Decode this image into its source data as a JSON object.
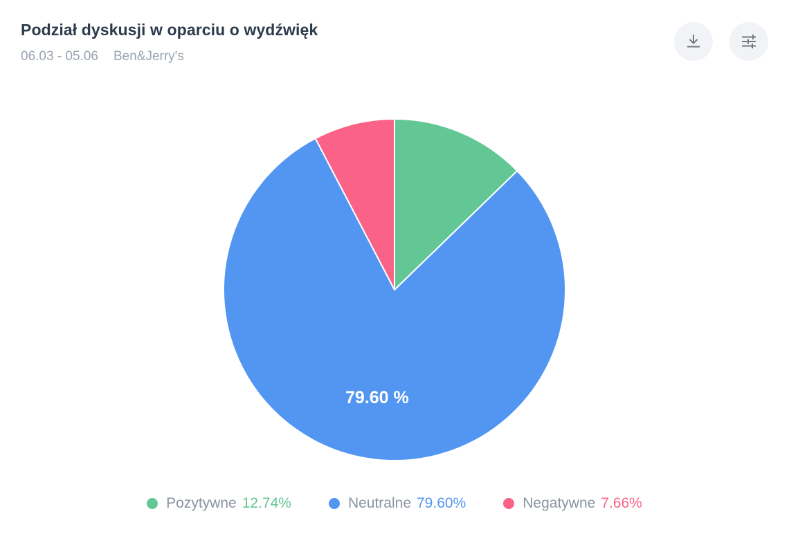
{
  "header": {
    "title": "Podział dyskusji w oparciu o wydźwięk",
    "date_range": "06.03 - 05.06",
    "brand": "Ben&Jerry's",
    "actions": [
      {
        "name": "download",
        "icon": "download-icon"
      },
      {
        "name": "filter",
        "icon": "sliders-filter-icon"
      }
    ]
  },
  "chart_data": {
    "type": "pie",
    "title": "Podział dyskusji w oparciu o wydźwięk",
    "subtitle": "06.03 - 05.06 Ben&Jerry's",
    "start_angle_deg": 0,
    "direction": "clockwise",
    "slice_border_color": "#ffffff",
    "legend_position": "bottom",
    "slices": [
      {
        "label": "Pozytywne",
        "value": 12.74,
        "legend_value": "12.74%",
        "color": "#63c795",
        "data_label": ""
      },
      {
        "label": "Neutralne",
        "value": 79.6,
        "legend_value": "79.60%",
        "color": "#5296f2",
        "data_label": "79.60 %"
      },
      {
        "label": "Negatywne",
        "value": 7.66,
        "legend_value": "7.66%",
        "color": "#fa6387",
        "data_label": ""
      }
    ]
  }
}
